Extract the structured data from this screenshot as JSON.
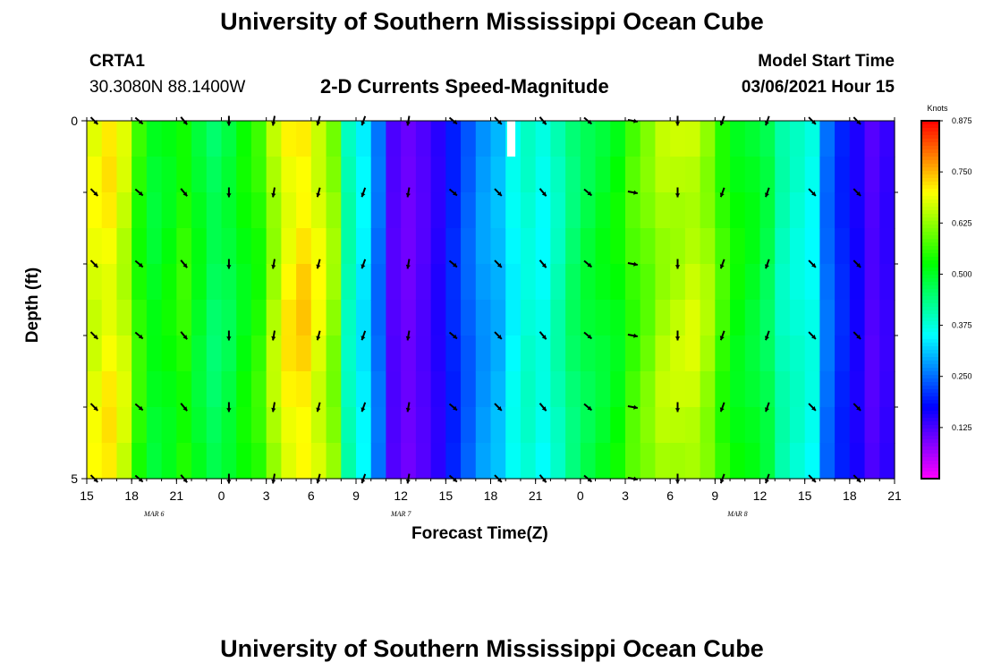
{
  "page": {
    "title_top": "University of Southern Mississippi Ocean Cube",
    "title_bottom": "University of Southern Mississippi Ocean Cube",
    "station": "CRTA1",
    "coords": "30.3080N 88.1400W",
    "subtitle": "2-D Currents Speed-Magnitude",
    "model_start_label": "Model Start Time",
    "model_start_value": "03/06/2021 Hour 15"
  },
  "chart_data": {
    "type": "heatmap",
    "title": "2-D Currents Speed-Magnitude",
    "xlabel": "Forecast Time(Z)",
    "ylabel": "Depth (ft)",
    "ylim": [
      0,
      5
    ],
    "y_ticks": [
      "0",
      "5"
    ],
    "x_tick_labels": [
      "15",
      "18",
      "21",
      "0",
      "3",
      "6",
      "9",
      "12",
      "15",
      "18",
      "21",
      "0",
      "3",
      "6",
      "9",
      "12",
      "15",
      "18",
      "21"
    ],
    "date_labels": [
      {
        "text": "MAR 6",
        "hour_index": 4.5
      },
      {
        "text": "MAR 7",
        "hour_index": 21
      },
      {
        "text": "MAR 8",
        "hour_index": 43.5
      }
    ],
    "hours": 54,
    "speed_profile": [
      0.68,
      0.7,
      0.66,
      0.55,
      0.5,
      0.52,
      0.55,
      0.5,
      0.46,
      0.48,
      0.52,
      0.55,
      0.64,
      0.7,
      0.72,
      0.68,
      0.62,
      0.4,
      0.34,
      0.25,
      0.12,
      0.1,
      0.12,
      0.15,
      0.2,
      0.24,
      0.28,
      0.3,
      0.35,
      0.38,
      0.36,
      0.4,
      0.45,
      0.48,
      0.5,
      0.52,
      0.57,
      0.6,
      0.64,
      0.65,
      0.66,
      0.63,
      0.56,
      0.52,
      0.5,
      0.47,
      0.4,
      0.38,
      0.36,
      0.25,
      0.2,
      0.16,
      0.12,
      0.14
    ],
    "colorbar": {
      "label": "Knots",
      "range": [
        0.0,
        0.875
      ],
      "ticks": [
        "0.125",
        "0.250",
        "0.375",
        "0.500",
        "0.625",
        "0.750",
        "0.875"
      ]
    },
    "vector_rows_ft": [
      0,
      1,
      2,
      3,
      4,
      5
    ],
    "vectors": [
      {
        "hour_index": 0,
        "dir_deg": 135
      },
      {
        "hour_index": 3,
        "dir_deg": 130
      },
      {
        "hour_index": 6,
        "dir_deg": 140
      },
      {
        "hour_index": 9,
        "dir_deg": 180
      },
      {
        "hour_index": 12,
        "dir_deg": 190
      },
      {
        "hour_index": 15,
        "dir_deg": 195
      },
      {
        "hour_index": 18,
        "dir_deg": 200
      },
      {
        "hour_index": 21,
        "dir_deg": 190
      },
      {
        "hour_index": 24,
        "dir_deg": 130
      },
      {
        "hour_index": 27,
        "dir_deg": 135
      },
      {
        "hour_index": 30,
        "dir_deg": 140
      },
      {
        "hour_index": 33,
        "dir_deg": 130
      },
      {
        "hour_index": 36,
        "dir_deg": 100
      },
      {
        "hour_index": 39,
        "dir_deg": 180
      },
      {
        "hour_index": 42,
        "dir_deg": 200
      },
      {
        "hour_index": 45,
        "dir_deg": 200
      },
      {
        "hour_index": 48,
        "dir_deg": 135
      },
      {
        "hour_index": 51,
        "dir_deg": 135
      }
    ],
    "missing_cell": {
      "hour_index": 28,
      "depth_range": [
        0,
        0.5
      ]
    }
  }
}
